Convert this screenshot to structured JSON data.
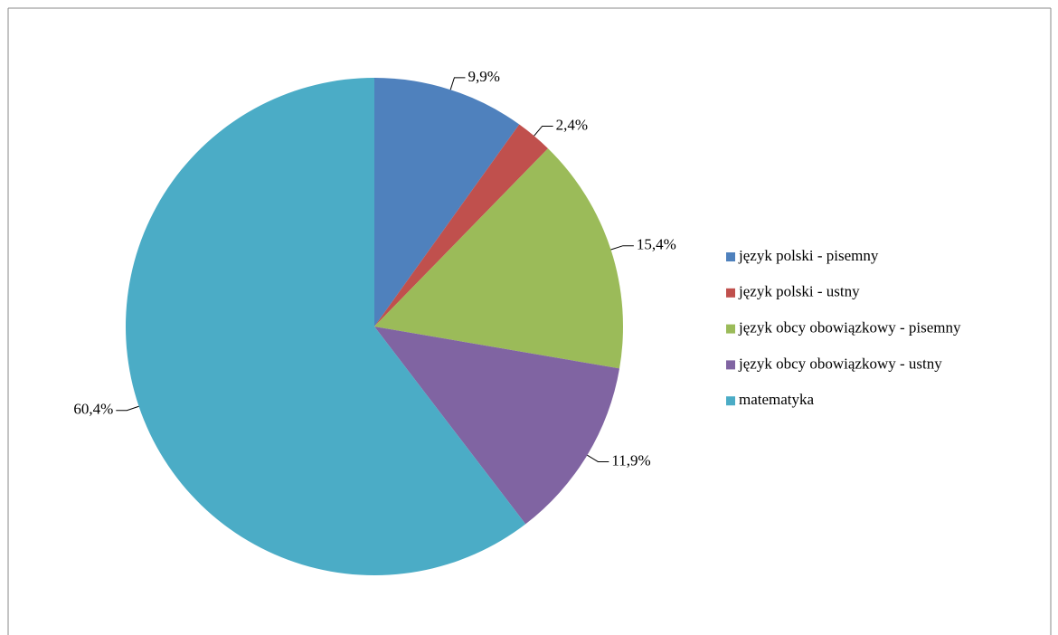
{
  "chart_data": {
    "type": "pie",
    "categories": [
      "język polski - pisemny",
      "język polski - ustny",
      "język obcy obowiązkowy - pisemny",
      "język obcy obowiązkowy - ustny",
      "matematyka"
    ],
    "values": [
      9.9,
      2.4,
      15.4,
      11.9,
      60.4
    ],
    "value_labels": [
      "9,9%",
      "2,4%",
      "15,4%",
      "11,9%",
      "60,4%"
    ],
    "colors": [
      "#4f81bd",
      "#c0504d",
      "#9bbb59",
      "#8064a2",
      "#4bacc6"
    ],
    "legend": "right"
  }
}
